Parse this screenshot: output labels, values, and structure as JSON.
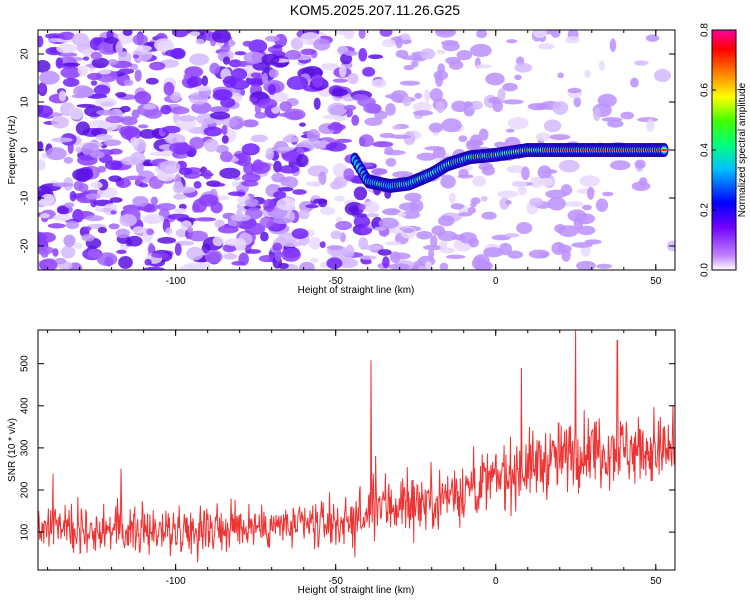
{
  "title": "KOM5.2025.207.11.26.G25",
  "chart_data": [
    {
      "type": "heatmap",
      "title": "KOM5.2025.207.11.26.G25",
      "xlabel": "Height of straight line (km)",
      "ylabel": "Frequency (Hz)",
      "xlim": [
        -143,
        56
      ],
      "ylim": [
        -25,
        25
      ],
      "xticks": [
        -100,
        -50,
        0,
        50
      ],
      "yticks": [
        -20,
        -10,
        0,
        10,
        20
      ],
      "colorbar": {
        "label": "Normalized spectral amplitude",
        "range": [
          0,
          0.8
        ],
        "ticks": [
          "0.0",
          "0.2",
          "0.4",
          "0.6",
          "0.8"
        ],
        "colors": [
          "#ffffff",
          "#8000ff",
          "#0000ff",
          "#00ffff",
          "#00ff00",
          "#ffff00",
          "#ff8000",
          "#ff0000",
          "#ff00ff"
        ]
      },
      "ridge": {
        "description_values": [
          {
            "x": -44,
            "y": -2
          },
          {
            "x": -40,
            "y": -6.5
          },
          {
            "x": -33,
            "y": -7.5
          },
          {
            "x": -27,
            "y": -7
          },
          {
            "x": -20,
            "y": -5
          },
          {
            "x": -15,
            "y": -3
          },
          {
            "x": -8,
            "y": -1.5
          },
          {
            "x": 0,
            "y": -1
          },
          {
            "x": 5,
            "y": -0.5
          },
          {
            "x": 10,
            "y": 0
          },
          {
            "x": 20,
            "y": 0
          },
          {
            "x": 35,
            "y": 0
          },
          {
            "x": 53,
            "y": 0
          }
        ]
      }
    },
    {
      "type": "line",
      "xlabel": "Height of straight line (km)",
      "ylabel": "SNR (10 * v/v)",
      "xlim": [
        -143,
        56
      ],
      "ylim": [
        10,
        580
      ],
      "xticks": [
        -100,
        -50,
        0,
        50
      ],
      "yticks": [
        100,
        200,
        300,
        400,
        500
      ],
      "color": "#ee3333",
      "trend": [
        {
          "x": -143,
          "mean": 110,
          "spread": 55
        },
        {
          "x": -100,
          "mean": 105,
          "spread": 55
        },
        {
          "x": -60,
          "mean": 115,
          "spread": 55
        },
        {
          "x": -40,
          "mean": 130,
          "spread": 60
        },
        {
          "x": -38,
          "mean": 160,
          "spread": 80
        },
        {
          "x": -20,
          "mean": 175,
          "spread": 70
        },
        {
          "x": 0,
          "mean": 225,
          "spread": 75
        },
        {
          "x": 10,
          "mean": 255,
          "spread": 80
        },
        {
          "x": 30,
          "mean": 300,
          "spread": 85
        },
        {
          "x": 56,
          "mean": 290,
          "spread": 80
        }
      ],
      "peaks": [
        {
          "x": -39,
          "y": 508
        },
        {
          "x": 8,
          "y": 490
        },
        {
          "x": 25,
          "y": 578
        },
        {
          "x": 38,
          "y": 555
        }
      ]
    }
  ]
}
